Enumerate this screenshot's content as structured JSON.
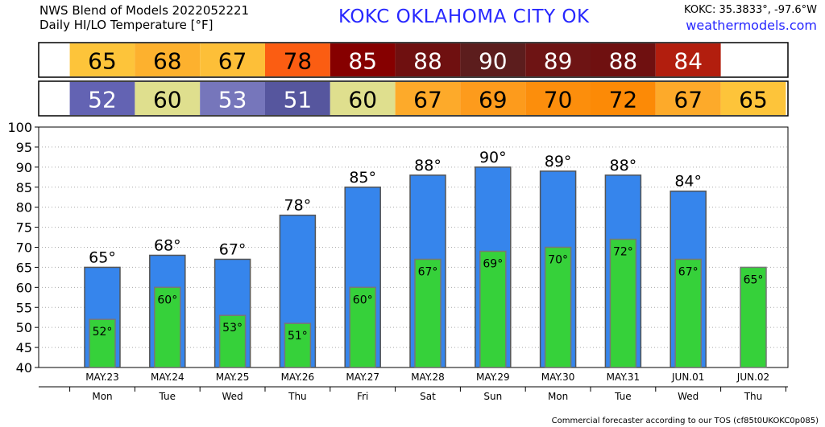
{
  "header": {
    "line1": "NWS Blend of Models 2022052221",
    "line2": "Daily HI/LO Temperature [°F]",
    "station": "KOKC   OKLAHOMA CITY   OK",
    "coords": "KOKC: 35.3833°, -97.6°W",
    "site": "weathermodels.com"
  },
  "footer": "Commercial forecaster according to our TOS (cf85t0UKOKC0p085)",
  "colors": {
    "hi_bar": "#3685ec",
    "lo_bar": "#36d13a",
    "grid": "#aaaaaa"
  },
  "chart_data": {
    "type": "bar",
    "categories": [
      "MAY.23",
      "MAY.24",
      "MAY.25",
      "MAY.26",
      "MAY.27",
      "MAY.28",
      "MAY.29",
      "MAY.30",
      "MAY.31",
      "JUN.01",
      "JUN.02"
    ],
    "weekdays": [
      "Mon",
      "Tue",
      "Wed",
      "Thu",
      "Fri",
      "Sat",
      "Sun",
      "Mon",
      "Tue",
      "Wed",
      "Thu"
    ],
    "series": [
      {
        "key": "hi",
        "values": [
          65,
          68,
          67,
          78,
          85,
          88,
          90,
          89,
          88,
          84,
          null
        ]
      },
      {
        "key": "lo",
        "values": [
          52,
          60,
          53,
          51,
          60,
          67,
          69,
          70,
          72,
          67,
          65
        ]
      }
    ],
    "hi_cell_colors": [
      "#fdc43a",
      "#fdb12e",
      "#fdbf38",
      "#fb5d12",
      "#860000",
      "#6f1010",
      "#5c1d1d",
      "#6e1414",
      "#6f1010",
      "#b21e0e",
      null
    ],
    "lo_cell_colors": [
      "#6363b3",
      "#dfdf8e",
      "#7676bb",
      "#56569e",
      "#dfdf8e",
      "#fdaa2a",
      "#fd9b1c",
      "#fc8e0c",
      "#fc8a06",
      "#fdaa2a",
      "#fdc43a"
    ],
    "hi_text_colors": [
      "#000000",
      "#000000",
      "#000000",
      "#000000",
      "#ffffff",
      "#ffffff",
      "#ffffff",
      "#ffffff",
      "#ffffff",
      "#ffffff",
      null
    ],
    "lo_text_colors": [
      "#ffffff",
      "#000000",
      "#ffffff",
      "#ffffff",
      "#000000",
      "#000000",
      "#000000",
      "#000000",
      "#000000",
      "#000000",
      "#000000"
    ],
    "ylim": [
      40,
      100
    ],
    "yticks": [
      40,
      45,
      50,
      55,
      60,
      65,
      70,
      75,
      80,
      85,
      90,
      95,
      100
    ],
    "grid": true,
    "degree_symbol": "°"
  }
}
